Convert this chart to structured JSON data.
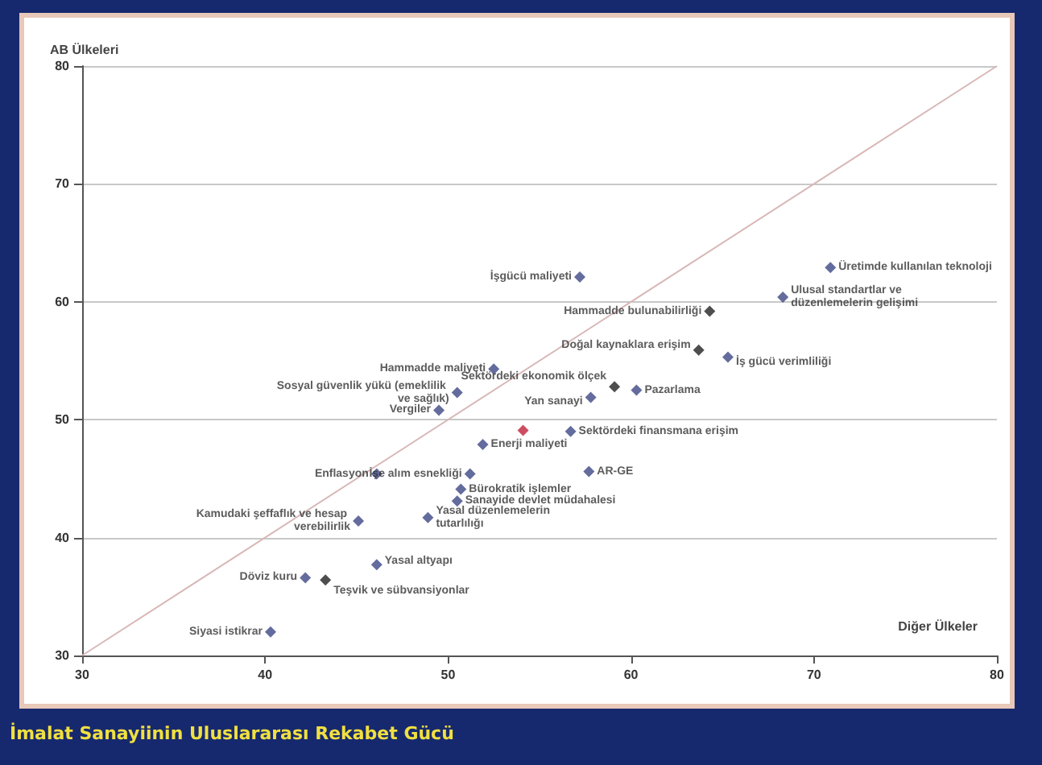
{
  "chart_data": {
    "type": "scatter",
    "title": "İmalat Sanayiinin Uluslararası Rekabet Gücü",
    "xlabel": "Diğer Ülkeler",
    "ylabel": "AB Ülkeleri",
    "x": [
      70.9,
      68.3,
      57.2,
      64.3,
      63.7,
      65.3,
      52.5,
      50.5,
      49.5,
      59.1,
      57.8,
      60.3,
      54.1,
      56.7,
      51.9,
      51.2,
      57.7,
      50.7,
      50.5,
      46.1,
      45.1,
      48.9,
      46.1,
      42.2,
      43.3,
      40.3
    ],
    "series": [
      {
        "color": "#3d4785",
        "marker": "diamond",
        "values": [
          62.9,
          60.4,
          62.1,
          59.2,
          55.9,
          55.3,
          54.3,
          52.3,
          50.8,
          52.8,
          51.9,
          52.5,
          49.1,
          49.0,
          47.9,
          45.4,
          45.6,
          44.1,
          43.1,
          45.4,
          41.4,
          41.7,
          37.7,
          36.6,
          36.4,
          32.0
        ],
        "colors": [
          "#3d4785",
          "#3d4785",
          "#3d4785",
          "#222222",
          "#222222",
          "#3d4785",
          "#3d4785",
          "#3d4785",
          "#3d4785",
          "#222222",
          "#3d4785",
          "#3d4785",
          "#c0203a",
          "#3d4785",
          "#3d4785",
          "#3d4785",
          "#3d4785",
          "#3d4785",
          "#3d4785",
          "#3d4785",
          "#3d4785",
          "#3d4785",
          "#3d4785",
          "#3d4785",
          "#222222",
          "#3d4785"
        ]
      },
      {
        "type": "line",
        "color": "#d8b8b8",
        "x": [
          30,
          80
        ],
        "values": [
          30,
          80
        ]
      }
    ],
    "annotations": [
      {
        "text": "Üretimde kullanılan teknoloji",
        "x": 70.9,
        "y": 62.9
      },
      {
        "text": "Ulusal standartlar ve düzenlemelerin gelişimi",
        "x": 68.3,
        "y": 60.4
      },
      {
        "text": "İşgücü maliyeti",
        "x": 57.2,
        "y": 62.1
      },
      {
        "text": "Hammadde bulunabilirliği",
        "x": 64.3,
        "y": 59.2
      },
      {
        "text": "Doğal kaynaklara erişim",
        "x": 63.7,
        "y": 55.9
      },
      {
        "text": "İş gücü verimliliği",
        "x": 65.3,
        "y": 55.3
      },
      {
        "text": "Hammadde maliyeti",
        "x": 52.5,
        "y": 54.3
      },
      {
        "text": "Sosyal güvenlik yükü (emeklilik ve sağlık)",
        "x": 50.5,
        "y": 52.3
      },
      {
        "text": "Vergiler",
        "x": 49.5,
        "y": 50.8
      },
      {
        "text": "Sektördeki ekonomik ölçek",
        "x": 59.1,
        "y": 52.8
      },
      {
        "text": "Yan sanayi",
        "x": 57.8,
        "y": 51.9
      },
      {
        "text": "Pazarlama",
        "x": 60.3,
        "y": 52.5
      },
      {
        "text": "Sektördeki finansmana erişim",
        "x": 56.7,
        "y": 49.0
      },
      {
        "text": "Enerji maliyeti",
        "x": 51.9,
        "y": 47.9
      },
      {
        "text": "İşe alım esnekliği",
        "x": 51.2,
        "y": 45.4
      },
      {
        "text": "AR-GE",
        "x": 57.7,
        "y": 45.6
      },
      {
        "text": "Bürokratik işlemler",
        "x": 50.7,
        "y": 44.1
      },
      {
        "text": "Sanayide devlet müdahalesi",
        "x": 50.5,
        "y": 43.1
      },
      {
        "text": "Enflasyon",
        "x": 46.1,
        "y": 45.4
      },
      {
        "text": "Kamudaki şeffaflık ve hesap verebilirlik",
        "x": 45.1,
        "y": 41.4
      },
      {
        "text": "Yasal düzenlemelerin tutarlılığı",
        "x": 48.9,
        "y": 41.7
      },
      {
        "text": "Yasal altyapı",
        "x": 46.1,
        "y": 37.7
      },
      {
        "text": "Döviz kuru",
        "x": 42.2,
        "y": 36.6
      },
      {
        "text": "Teşvik ve sübvansiyonlar",
        "x": 43.3,
        "y": 36.4
      },
      {
        "text": "Siyasi istikrar",
        "x": 40.3,
        "y": 32.0
      }
    ],
    "xlim": [
      30,
      80
    ],
    "xticks": [
      30,
      40,
      50,
      60,
      70,
      80
    ],
    "ylim": [
      30,
      80
    ],
    "yticks": [
      30,
      40,
      50,
      60,
      70,
      80
    ],
    "grid": "y"
  }
}
